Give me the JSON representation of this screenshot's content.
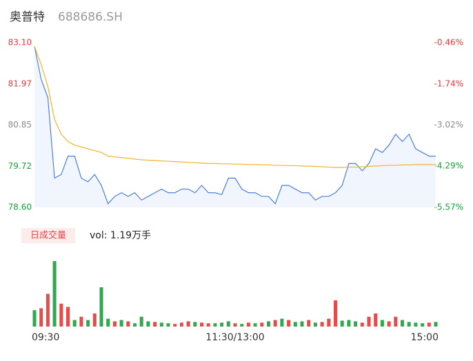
{
  "chart_data": [
    {
      "type": "line",
      "title": "奥普特",
      "subtitle": "688686.SH",
      "xlim": [
        0,
        60
      ],
      "xticks": [
        {
          "value": 0,
          "label": "09:30"
        },
        {
          "value": 30,
          "label": "11:30/13:00"
        },
        {
          "value": 60,
          "label": "15:00"
        }
      ],
      "ylim": [
        78.6,
        83.1
      ],
      "yticks": [
        {
          "value": 83.1,
          "label": "83.10"
        },
        81.97,
        80.85,
        79.72,
        {
          "value": 78.6,
          "label": "78.60"
        }
      ],
      "ytick_colors": [
        "#e8383d",
        "#e8383d",
        "#888888",
        "#1a9f3c",
        "#1a9f3c"
      ],
      "y2lim": [
        -0.46,
        -5.57
      ],
      "y2ticks": [
        {
          "value": -0.46,
          "label": "-0.46%"
        },
        {
          "value": -1.74,
          "label": "-1.74%"
        },
        {
          "value": -3.02,
          "label": "-3.02%"
        },
        {
          "value": -4.29,
          "label": "-4.29%"
        },
        {
          "value": -5.57,
          "label": "-5.57%"
        }
      ],
      "series": [
        {
          "name": "price",
          "color": "#4a7fe0",
          "values": [
            83.0,
            82.1,
            81.6,
            79.4,
            79.5,
            80.0,
            80.0,
            79.4,
            79.3,
            79.5,
            79.2,
            78.7,
            78.9,
            79.0,
            78.9,
            79.0,
            78.8,
            78.9,
            79.0,
            79.1,
            79.0,
            79.0,
            79.1,
            79.1,
            79.0,
            79.2,
            79.0,
            79.0,
            78.95,
            79.4,
            79.4,
            79.1,
            79.0,
            79.0,
            78.9,
            78.9,
            78.7,
            79.2,
            79.2,
            79.1,
            79.0,
            79.0,
            78.8,
            78.9,
            78.9,
            79.0,
            79.2,
            79.8,
            79.8,
            79.6,
            79.8,
            80.2,
            80.1,
            80.3,
            80.6,
            80.4,
            80.6,
            80.2,
            80.1,
            80.0,
            80.0
          ]
        },
        {
          "name": "average",
          "color": "#f5b02e",
          "values": [
            83.0,
            82.5,
            81.9,
            81.0,
            80.6,
            80.4,
            80.3,
            80.25,
            80.2,
            80.15,
            80.1,
            80.0,
            79.98,
            79.96,
            79.94,
            79.92,
            79.9,
            79.89,
            79.88,
            79.87,
            79.86,
            79.85,
            79.84,
            79.83,
            79.82,
            79.81,
            79.8,
            79.8,
            79.79,
            79.79,
            79.78,
            79.78,
            79.77,
            79.77,
            79.76,
            79.76,
            79.75,
            79.75,
            79.74,
            79.74,
            79.73,
            79.73,
            79.72,
            79.71,
            79.7,
            79.69,
            79.69,
            79.7,
            79.7,
            79.71,
            79.72,
            79.73,
            79.74,
            79.75,
            79.75,
            79.76,
            79.76,
            79.77,
            79.77,
            79.77,
            79.77
          ]
        }
      ]
    },
    {
      "type": "bar",
      "title": "日成交量",
      "subtitle": "vol: 1.19万手",
      "ylim": [
        0,
        1200
      ],
      "values": [
        250,
        280,
        500,
        1000,
        350,
        300,
        100,
        150,
        100,
        200,
        600,
        120,
        80,
        100,
        80,
        50,
        150,
        80,
        70,
        60,
        50,
        40,
        60,
        80,
        70,
        60,
        50,
        50,
        60,
        80,
        50,
        40,
        60,
        50,
        60,
        80,
        100,
        120,
        100,
        70,
        80,
        100,
        60,
        70,
        120,
        400,
        90,
        100,
        80,
        60,
        150,
        200,
        100,
        80,
        150,
        100,
        70,
        60,
        50,
        60,
        70
      ],
      "colors": [
        "#2fa84f",
        "#e84a4a",
        "#e84a4a",
        "#2fa84f",
        "#e84a4a",
        "#e84a4a",
        "#2fa84f",
        "#e84a4a",
        "#2fa84f",
        "#e84a4a",
        "#2fa84f",
        "#2fa84f",
        "#e84a4a",
        "#2fa84f",
        "#e84a4a",
        "#2fa84f",
        "#2fa84f",
        "#2fa84f",
        "#e84a4a",
        "#2fa84f",
        "#2fa84f",
        "#e84a4a",
        "#e84a4a",
        "#e84a4a",
        "#2fa84f",
        "#e84a4a",
        "#e84a4a",
        "#2fa84f",
        "#2fa84f",
        "#2fa84f",
        "#e84a4a",
        "#2fa84f",
        "#e84a4a",
        "#2fa84f",
        "#e84a4a",
        "#2fa84f",
        "#e84a4a",
        "#2fa84f",
        "#e84a4a",
        "#2fa84f",
        "#2fa84f",
        "#e84a4a",
        "#2fa84f",
        "#e84a4a",
        "#e84a4a",
        "#e84a4a",
        "#2fa84f",
        "#2fa84f",
        "#2fa84f",
        "#e84a4a",
        "#e84a4a",
        "#e84a4a",
        "#2fa84f",
        "#e84a4a",
        "#e84a4a",
        "#2fa84f",
        "#2fa84f",
        "#2fa84f",
        "#2fa84f",
        "#e84a4a",
        "#2fa84f"
      ]
    }
  ]
}
